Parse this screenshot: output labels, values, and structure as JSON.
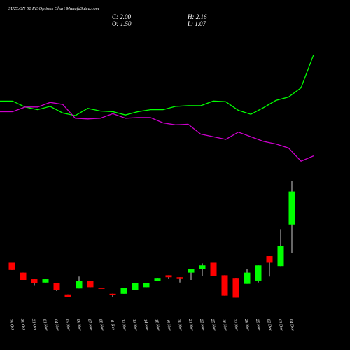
{
  "chart_data": {
    "type": "candlestick",
    "title": "SUZLON 52 PE Options Chart MunafaSutra.com",
    "annotations": [
      "C: 2.00",
      "H: 2.16",
      "O: 1.50",
      "L: 1.07"
    ],
    "categories": [
      "29 Oct",
      "30 Oct",
      "31 Oct",
      "01 Nov",
      "04 Nov",
      "05 Nov",
      "06 Nov",
      "07 Nov",
      "08 Nov",
      "11 Nov",
      "12 Nov",
      "13 Nov",
      "14 Nov",
      "18 Nov",
      "19 Nov",
      "20 Nov",
      "21 Nov",
      "22 Nov",
      "25 Nov",
      "26 Nov",
      "27 Nov",
      "28 Nov",
      "29 Nov",
      "02 Dec",
      "03 Dec",
      "04 Dec"
    ],
    "open": [
      0.92,
      0.77,
      0.67,
      0.62,
      0.61,
      0.44,
      0.53,
      0.64,
      0.54,
      0.45,
      0.45,
      0.51,
      0.55,
      0.64,
      0.73,
      0.7,
      0.77,
      0.82,
      0.92,
      0.73,
      0.69,
      0.6,
      0.65,
      1.02,
      0.87,
      1.5
    ],
    "high": [
      0.92,
      0.77,
      0.67,
      0.67,
      0.61,
      0.44,
      0.71,
      0.64,
      0.54,
      0.45,
      0.54,
      0.61,
      0.61,
      0.69,
      0.73,
      0.7,
      0.82,
      0.91,
      0.92,
      0.73,
      0.69,
      0.83,
      0.88,
      1.02,
      1.43,
      2.16
    ],
    "low": [
      0.81,
      0.66,
      0.58,
      0.62,
      0.49,
      0.4,
      0.53,
      0.55,
      0.53,
      0.4,
      0.45,
      0.51,
      0.55,
      0.64,
      0.67,
      0.62,
      0.66,
      0.72,
      0.72,
      0.42,
      0.39,
      0.6,
      0.62,
      0.71,
      0.87,
      1.07
    ],
    "close": [
      0.81,
      0.66,
      0.61,
      0.67,
      0.51,
      0.4,
      0.64,
      0.55,
      0.53,
      0.44,
      0.54,
      0.61,
      0.61,
      0.69,
      0.7,
      0.69,
      0.82,
      0.88,
      0.72,
      0.42,
      0.39,
      0.77,
      0.88,
      0.92,
      1.17,
      2.0
    ],
    "up_color": "#00ff00",
    "down_color": "#ff0000",
    "series": [
      {
        "color": "#00ff00",
        "values": [
          3.37,
          3.37,
          3.28,
          3.24,
          3.29,
          3.19,
          3.15,
          3.26,
          3.22,
          3.21,
          3.16,
          3.21,
          3.24,
          3.24,
          3.29,
          3.3,
          3.3,
          3.37,
          3.36,
          3.23,
          3.17,
          3.27,
          3.38,
          3.43,
          3.57,
          4.07
        ]
      },
      {
        "color": "#cc00cc",
        "values": [
          3.21,
          3.21,
          3.28,
          3.28,
          3.35,
          3.32,
          3.11,
          3.1,
          3.11,
          3.18,
          3.11,
          3.12,
          3.12,
          3.04,
          3.01,
          3.02,
          2.87,
          2.83,
          2.79,
          2.9,
          2.83,
          2.76,
          2.72,
          2.66,
          2.46,
          2.54
        ]
      }
    ],
    "ylim": [
      -0.4,
      4.9
    ]
  }
}
